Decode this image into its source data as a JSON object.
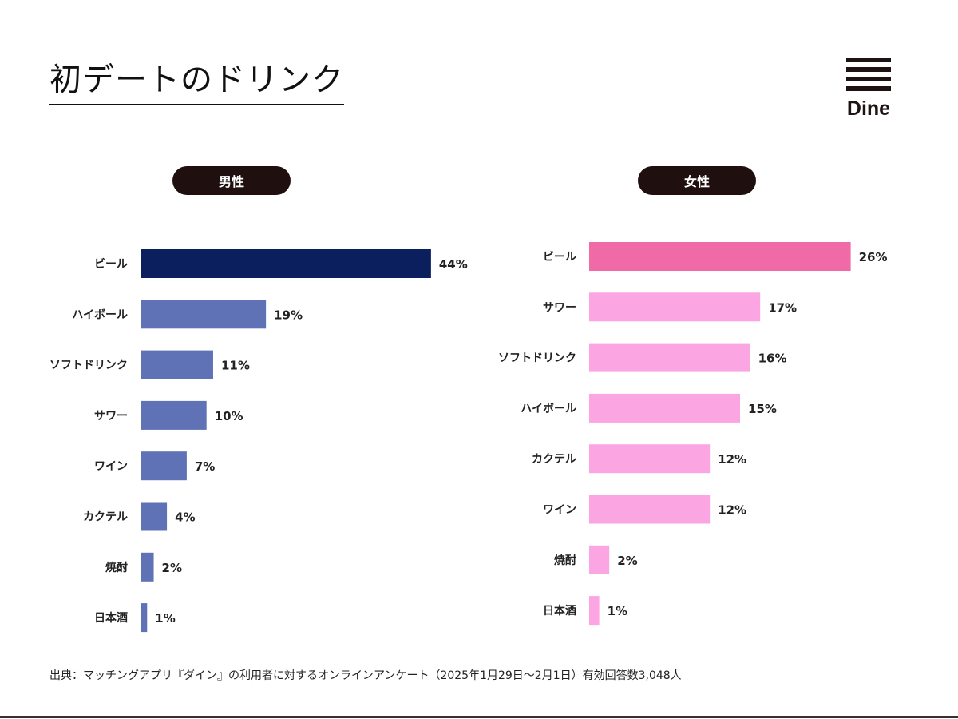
{
  "title": "初デートのドリンク",
  "logo_text": "Dine",
  "source": "出典：マッチングアプリ『ダイン』の利用者に対するオンラインアンケート（2025年1月29日〜2月1日）有効回答数3,048人",
  "chart_data": [
    {
      "type": "bar",
      "orientation": "horizontal",
      "title": "男性",
      "categories": [
        "ビール",
        "ハイボール",
        "ソフトドリンク",
        "サワー",
        "ワイン",
        "カクテル",
        "焼酎",
        "日本酒"
      ],
      "values": [
        44,
        19,
        11,
        10,
        7,
        4,
        2,
        1
      ],
      "value_labels": [
        "44%",
        "19%",
        "11%",
        "10%",
        "7%",
        "4%",
        "2%",
        "1%"
      ],
      "unit": "%",
      "colors": {
        "highlight": "#0b1f5e",
        "default": "#5e72b5"
      }
    },
    {
      "type": "bar",
      "orientation": "horizontal",
      "title": "女性",
      "categories": [
        "ビール",
        "サワー",
        "ソフトドリンク",
        "ハイボール",
        "カクテル",
        "ワイン",
        "焼酎",
        "日本酒"
      ],
      "values": [
        26,
        17,
        16,
        15,
        12,
        12,
        2,
        1
      ],
      "value_labels": [
        "26%",
        "17%",
        "16%",
        "15%",
        "12%",
        "12%",
        "2%",
        "1%"
      ],
      "unit": "%",
      "colors": {
        "highlight": "#ef6aa6",
        "default": "#fba6e3"
      }
    }
  ]
}
